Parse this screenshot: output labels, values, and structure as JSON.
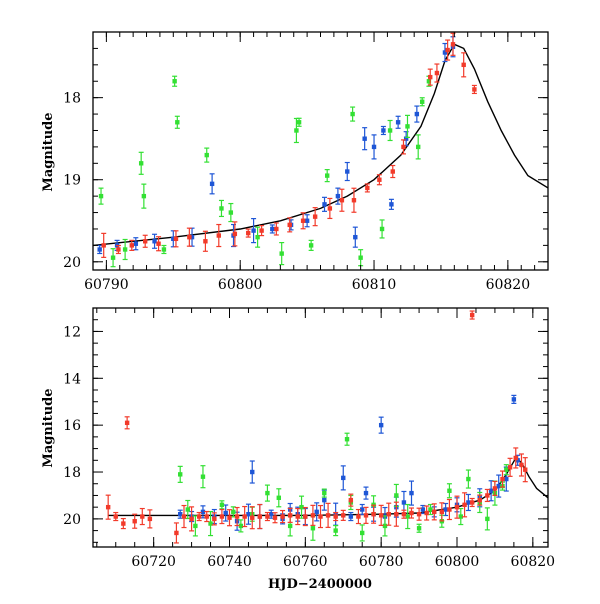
{
  "chart_data": [
    {
      "type": "scatter",
      "title": "",
      "xlabel": "",
      "ylabel": "Magnitude",
      "xlim": [
        60789,
        60823
      ],
      "ylim": [
        20.1,
        17.2
      ],
      "y_inverted": true,
      "xticks": [
        60790,
        60800,
        60810,
        60820
      ],
      "xtick_labels": [
        "60790",
        "60800",
        "60810",
        "60820"
      ],
      "yticks": [
        18,
        19,
        20
      ],
      "ytick_labels": [
        "18",
        "19",
        "20"
      ],
      "grid": false,
      "legend": "none",
      "model_curve": {
        "color": "#000000",
        "x": [
          60789,
          60795,
          60800,
          60803,
          60806,
          60808,
          60810,
          60812,
          60813.5,
          60814.5,
          60815.3,
          60816,
          60816.7,
          60817.5,
          60818.5,
          60819.5,
          60820.5,
          60821.5,
          60823
        ],
        "y": [
          19.8,
          19.7,
          19.6,
          19.5,
          19.35,
          19.2,
          19.0,
          18.7,
          18.35,
          17.95,
          17.55,
          17.35,
          17.4,
          17.65,
          18.05,
          18.4,
          18.7,
          18.95,
          19.1
        ]
      },
      "series": [
        {
          "color": "#1e56d6",
          "points": [
            [
              60789.5,
              19.85
            ],
            [
              60790.8,
              19.8
            ],
            [
              60792.2,
              19.78
            ],
            [
              60793.6,
              19.75
            ],
            [
              60795.0,
              19.72
            ],
            [
              60796.4,
              19.7
            ],
            [
              60797.9,
              19.05
            ],
            [
              60799.5,
              19.68
            ],
            [
              60801.0,
              19.62
            ],
            [
              60802.4,
              19.6
            ],
            [
              60803.8,
              19.55
            ],
            [
              60805.0,
              19.5
            ],
            [
              60806.3,
              19.3
            ],
            [
              60807.3,
              19.2
            ],
            [
              60808.0,
              18.9
            ],
            [
              60808.6,
              19.7
            ],
            [
              60809.3,
              18.5
            ],
            [
              60810.0,
              18.6
            ],
            [
              60810.7,
              18.4
            ],
            [
              60811.3,
              19.3
            ],
            [
              60811.8,
              18.3
            ],
            [
              60812.4,
              18.5
            ],
            [
              60813.2,
              18.2
            ],
            [
              60815.3,
              17.45
            ],
            [
              60815.9,
              17.38
            ]
          ]
        },
        {
          "color": "#33e033",
          "points": [
            [
              60789.6,
              19.2
            ],
            [
              60790.5,
              19.95
            ],
            [
              60791.4,
              19.85
            ],
            [
              60792.6,
              18.8
            ],
            [
              60792.8,
              19.2
            ],
            [
              60794.3,
              19.85
            ],
            [
              60795.1,
              17.8
            ],
            [
              60795.3,
              18.3
            ],
            [
              60797.5,
              18.7
            ],
            [
              60798.6,
              19.35
            ],
            [
              60799.3,
              19.4
            ],
            [
              60801.3,
              19.7
            ],
            [
              60803.1,
              19.9
            ],
            [
              60804.2,
              18.4
            ],
            [
              60804.4,
              18.3
            ],
            [
              60805.3,
              19.8
            ],
            [
              60806.5,
              18.95
            ],
            [
              60808.4,
              18.2
            ],
            [
              60809.0,
              19.95
            ],
            [
              60810.6,
              19.6
            ],
            [
              60811.2,
              18.4
            ],
            [
              60812.5,
              18.35
            ],
            [
              60813.3,
              18.6
            ],
            [
              60813.6,
              18.05
            ],
            [
              60814.1,
              17.8
            ]
          ]
        },
        {
          "color": "#f23a2a",
          "points": [
            [
              60789.8,
              19.8
            ],
            [
              60790.9,
              19.85
            ],
            [
              60791.9,
              19.8
            ],
            [
              60792.9,
              19.75
            ],
            [
              60793.9,
              19.78
            ],
            [
              60795.2,
              19.72
            ],
            [
              60796.2,
              19.7
            ],
            [
              60797.4,
              19.75
            ],
            [
              60798.4,
              19.68
            ],
            [
              60799.6,
              19.66
            ],
            [
              60800.6,
              19.65
            ],
            [
              60801.6,
              19.62
            ],
            [
              60802.7,
              19.6
            ],
            [
              60803.7,
              19.55
            ],
            [
              60804.7,
              19.5
            ],
            [
              60805.6,
              19.45
            ],
            [
              60806.7,
              19.35
            ],
            [
              60807.6,
              19.25
            ],
            [
              60808.5,
              19.25
            ],
            [
              60809.5,
              19.1
            ],
            [
              60810.4,
              19.0
            ],
            [
              60811.4,
              18.9
            ],
            [
              60812.2,
              18.6
            ],
            [
              60814.2,
              17.75
            ],
            [
              60814.7,
              17.7
            ],
            [
              60815.5,
              17.42
            ],
            [
              60815.9,
              17.35
            ],
            [
              60816.7,
              17.6
            ],
            [
              60817.5,
              17.9
            ]
          ]
        }
      ]
    },
    {
      "type": "scatter",
      "title": "",
      "xlabel": "HJD−2400000",
      "ylabel": "Magnitude",
      "xlim": [
        60704,
        60824
      ],
      "ylim": [
        21.2,
        11.0
      ],
      "y_inverted": true,
      "xticks": [
        60720,
        60740,
        60760,
        60780,
        60800,
        60820
      ],
      "xtick_labels": [
        "60720",
        "60740",
        "60760",
        "60780",
        "60800",
        "60820"
      ],
      "yticks": [
        12,
        14,
        16,
        18,
        20
      ],
      "ytick_labels": [
        "12",
        "14",
        "16",
        "18",
        "20"
      ],
      "grid": false,
      "legend": "none",
      "model_curve": {
        "color": "#000000",
        "x": [
          60708,
          60720,
          60740,
          60760,
          60780,
          60790,
          60800,
          60806,
          60810,
          60813,
          60815.5,
          60817,
          60819,
          60821,
          60824
        ],
        "y": [
          19.85,
          19.85,
          19.85,
          19.85,
          19.8,
          19.75,
          19.5,
          19.2,
          18.8,
          18.1,
          17.4,
          17.6,
          18.2,
          18.7,
          19.1
        ]
      },
      "series": [
        {
          "color": "#1e56d6",
          "points": [
            [
              60727,
              19.8
            ],
            [
              60730,
              19.9
            ],
            [
              60733,
              19.7
            ],
            [
              60736,
              19.9
            ],
            [
              60739,
              19.75
            ],
            [
              60742,
              20.1
            ],
            [
              60745,
              19.8
            ],
            [
              60746,
              18.0
            ],
            [
              60748,
              19.9
            ],
            [
              60751,
              19.8
            ],
            [
              60754,
              20.0
            ],
            [
              60756,
              19.6
            ],
            [
              60758,
              19.8
            ],
            [
              60760,
              19.9
            ],
            [
              60763,
              19.7
            ],
            [
              60765,
              19.2
            ],
            [
              60768,
              19.8
            ],
            [
              60770,
              18.25
            ],
            [
              60772,
              19.9
            ],
            [
              60775,
              19.6
            ],
            [
              60776,
              18.9
            ],
            [
              60778,
              19.8
            ],
            [
              60780,
              16.0
            ],
            [
              60781,
              19.9
            ],
            [
              60784,
              19.5
            ],
            [
              60786,
              19.3
            ],
            [
              60788,
              18.9
            ],
            [
              60791,
              19.6
            ],
            [
              60794,
              19.7
            ],
            [
              60797,
              19.6
            ],
            [
              60800,
              19.4
            ],
            [
              60803,
              19.3
            ],
            [
              60806,
              19.1
            ],
            [
              60809,
              18.8
            ],
            [
              60811,
              18.6
            ],
            [
              60813,
              18.3
            ],
            [
              60815,
              14.9
            ],
            [
              60816,
              17.5
            ]
          ]
        },
        {
          "color": "#33e033",
          "points": [
            [
              60727,
              18.1
            ],
            [
              60729,
              19.6
            ],
            [
              60731,
              20.3
            ],
            [
              60733,
              18.2
            ],
            [
              60735,
              20.2
            ],
            [
              60738,
              19.4
            ],
            [
              60741,
              19.7
            ],
            [
              60743,
              20.3
            ],
            [
              60746,
              19.8
            ],
            [
              60750,
              18.9
            ],
            [
              60753,
              19.1
            ],
            [
              60756,
              20.3
            ],
            [
              60759,
              19.5
            ],
            [
              60762,
              20.4
            ],
            [
              60765,
              18.9
            ],
            [
              60768,
              20.5
            ],
            [
              60771,
              16.6
            ],
            [
              60772,
              19.3
            ],
            [
              60775,
              20.6
            ],
            [
              60778,
              19.4
            ],
            [
              60781,
              20.3
            ],
            [
              60784,
              19.0
            ],
            [
              60787,
              19.9
            ],
            [
              60790,
              20.4
            ],
            [
              60793,
              19.6
            ],
            [
              60796,
              20.1
            ],
            [
              60798,
              18.8
            ],
            [
              60801,
              19.9
            ],
            [
              60803,
              18.3
            ],
            [
              60806,
              19.3
            ],
            [
              60808,
              20.0
            ],
            [
              60810,
              18.9
            ],
            [
              60812,
              18.6
            ],
            [
              60813,
              17.9
            ]
          ]
        },
        {
          "color": "#f23a2a",
          "points": [
            [
              60708,
              19.5
            ],
            [
              60710,
              19.9
            ],
            [
              60712,
              20.2
            ],
            [
              60713,
              15.9
            ],
            [
              60715,
              20.1
            ],
            [
              60717,
              19.9
            ],
            [
              60719,
              20.0
            ],
            [
              60726,
              20.6
            ],
            [
              60728,
              19.9
            ],
            [
              60730,
              20.0
            ],
            [
              60732,
              19.9
            ],
            [
              60734,
              19.9
            ],
            [
              60736,
              20.0
            ],
            [
              60738,
              19.9
            ],
            [
              60740,
              19.95
            ],
            [
              60742,
              19.9
            ],
            [
              60744,
              19.9
            ],
            [
              60746,
              19.95
            ],
            [
              60748,
              19.9
            ],
            [
              60750,
              19.9
            ],
            [
              60752,
              19.95
            ],
            [
              60754,
              19.9
            ],
            [
              60756,
              19.85
            ],
            [
              60758,
              19.9
            ],
            [
              60760,
              19.9
            ],
            [
              60762,
              19.85
            ],
            [
              60764,
              19.9
            ],
            [
              60766,
              19.85
            ],
            [
              60768,
              19.9
            ],
            [
              60770,
              19.85
            ],
            [
              60772,
              19.2
            ],
            [
              60774,
              19.9
            ],
            [
              60776,
              19.85
            ],
            [
              60778,
              19.8
            ],
            [
              60780,
              19.85
            ],
            [
              60782,
              19.8
            ],
            [
              60784,
              19.8
            ],
            [
              60786,
              19.8
            ],
            [
              60788,
              19.75
            ],
            [
              60790,
              19.8
            ],
            [
              60792,
              19.75
            ],
            [
              60794,
              19.7
            ],
            [
              60796,
              19.7
            ],
            [
              60798,
              19.6
            ],
            [
              60800,
              19.5
            ],
            [
              60802,
              19.4
            ],
            [
              60804,
              19.3
            ],
            [
              60806,
              19.2
            ],
            [
              60808,
              19.0
            ],
            [
              60810,
              18.7
            ],
            [
              60812,
              18.3
            ],
            [
              60814,
              17.8
            ],
            [
              60815.5,
              17.4
            ],
            [
              60817,
              17.7
            ],
            [
              60818,
              17.9
            ],
            [
              60804,
              11.3
            ]
          ]
        }
      ]
    }
  ]
}
